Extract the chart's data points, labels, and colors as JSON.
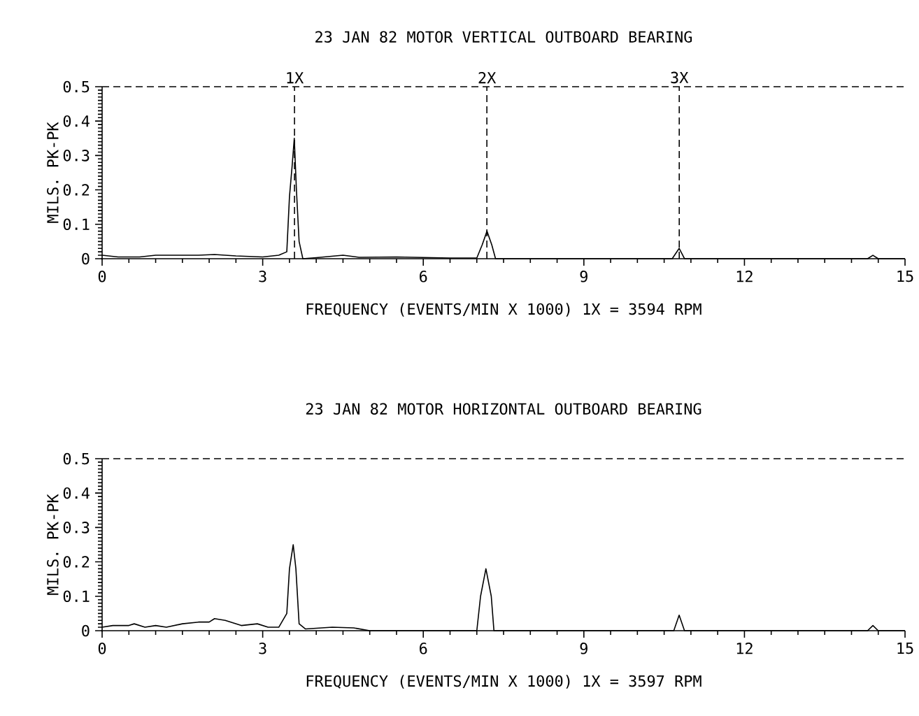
{
  "chart_data": [
    {
      "type": "line",
      "title": "23 JAN 82     MOTOR VERTICAL OUTBOARD BEARING",
      "xlabel": "FREQUENCY (EVENTS/MIN X 1000)    1X = 3594 RPM",
      "ylabel": "MILS. PK-PK",
      "x": [
        0,
        0.3,
        0.7,
        1.0,
        1.5,
        1.8,
        2.1,
        2.5,
        3.0,
        3.3,
        3.45,
        3.5,
        3.55,
        3.59,
        3.63,
        3.68,
        3.75,
        4.0,
        4.5,
        4.8,
        5.5,
        6.5,
        7.0,
        7.1,
        7.19,
        7.28,
        7.35,
        10.65,
        10.78,
        10.88,
        14.3,
        14.4,
        14.5,
        15
      ],
      "series": [
        {
          "color": "#000000",
          "values": [
            0.01,
            0.005,
            0.005,
            0.01,
            0.01,
            0.01,
            0.012,
            0.008,
            0.005,
            0.01,
            0.02,
            0.18,
            0.27,
            0.35,
            0.2,
            0.05,
            0.0,
            0.003,
            0.01,
            0.004,
            0.005,
            0.002,
            0.002,
            0.04,
            0.08,
            0.04,
            0.0,
            0.0,
            0.03,
            0.0,
            0.0,
            0.01,
            0.0,
            0.0
          ]
        }
      ],
      "xlim": [
        0,
        15
      ],
      "xticks": [
        0,
        3,
        6,
        9,
        12,
        15
      ],
      "ylim": [
        0,
        0.5
      ],
      "yticks": [
        0,
        0.1,
        0.2,
        0.3,
        0.4,
        0.5
      ],
      "ref_lines": [
        {
          "axis": "y",
          "value": 0.5,
          "line_style": "dashed"
        },
        {
          "axis": "x",
          "value": 3.594,
          "label": "1X",
          "line_style": "dashed"
        },
        {
          "axis": "x",
          "value": 7.188,
          "label": "2X",
          "line_style": "dashed"
        },
        {
          "axis": "x",
          "value": 10.782,
          "label": "3X",
          "line_style": "dashed"
        }
      ],
      "grid": false
    },
    {
      "type": "line",
      "title": "23 JAN 82     MOTOR HORIZONTAL OUTBOARD BEARING",
      "xlabel": "FREQUENCY (EVENTS/MIN X 1000)    1X = 3597 RPM",
      "ylabel": "MILS. PK-PK",
      "x": [
        0,
        0.2,
        0.5,
        0.6,
        0.8,
        1.0,
        1.2,
        1.5,
        1.8,
        2.0,
        2.1,
        2.3,
        2.6,
        2.9,
        3.1,
        3.3,
        3.45,
        3.5,
        3.57,
        3.62,
        3.68,
        3.8,
        4.3,
        4.7,
        5.0,
        7.0,
        7.07,
        7.17,
        7.27,
        7.32,
        10.68,
        10.78,
        10.88,
        14.3,
        14.4,
        14.5,
        15
      ],
      "series": [
        {
          "color": "#000000",
          "values": [
            0.01,
            0.015,
            0.015,
            0.02,
            0.01,
            0.015,
            0.01,
            0.02,
            0.025,
            0.025,
            0.035,
            0.03,
            0.015,
            0.02,
            0.01,
            0.01,
            0.05,
            0.18,
            0.25,
            0.18,
            0.02,
            0.005,
            0.01,
            0.008,
            0.0,
            0.0,
            0.1,
            0.18,
            0.1,
            0.0,
            0.0,
            0.045,
            0.0,
            0.0,
            0.015,
            0.0,
            0.0
          ]
        }
      ],
      "xlim": [
        0,
        15
      ],
      "xticks": [
        0,
        3,
        6,
        9,
        12,
        15
      ],
      "ylim": [
        0,
        0.5
      ],
      "yticks": [
        0,
        0.1,
        0.2,
        0.3,
        0.4,
        0.5
      ],
      "ref_lines": [
        {
          "axis": "y",
          "value": 0.5,
          "line_style": "dashed"
        }
      ],
      "grid": false
    }
  ]
}
